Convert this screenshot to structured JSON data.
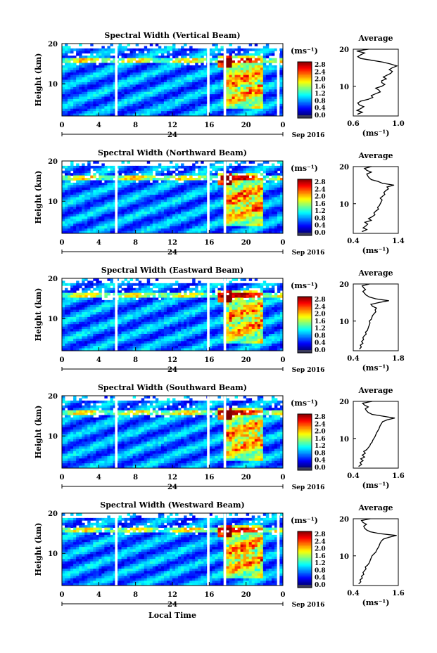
{
  "chart_data": [
    {
      "type": "heatmap",
      "title": "Spectral Width (Vertical Beam)",
      "ylabel": "Height (km)",
      "x_ticks": [
        "0",
        "4",
        "8",
        "12",
        "16",
        "20",
        "0"
      ],
      "y_ticks": [
        "20",
        "10"
      ],
      "ylim": [
        2,
        20
      ],
      "date_day": "24",
      "date_label": "Sep 2016",
      "colorbar": {
        "unit": "(ms⁻¹)",
        "ticks": [
          "2.8",
          "2.4",
          "2.0",
          "1.6",
          "1.2",
          "0.8",
          "0.4",
          "0.0"
        ]
      },
      "gaps_local_time": [
        5.9,
        15.9,
        17.7,
        23.5
      ],
      "profile": {
        "title": "Average",
        "xlabel": "(ms⁻¹)",
        "x_ticks": [
          "0.6",
          "1.0"
        ],
        "xlim": [
          0.6,
          1.2
        ],
        "y_ticks": [
          "20",
          "10"
        ],
        "heights": [
          2.5,
          3,
          3.5,
          4,
          4.5,
          5,
          5.5,
          6,
          6.5,
          7,
          7.5,
          8,
          8.5,
          9,
          9.5,
          10,
          10.5,
          11,
          11.5,
          12,
          12.5,
          13,
          13.5,
          14,
          14.5,
          15,
          15.5,
          16,
          16.5,
          17,
          17.5,
          18,
          18.5,
          19,
          19.5,
          20
        ],
        "values": [
          0.66,
          0.72,
          0.65,
          0.7,
          0.74,
          0.68,
          0.66,
          0.7,
          0.8,
          0.86,
          0.84,
          0.9,
          0.96,
          0.94,
          0.9,
          0.98,
          1.02,
          0.98,
          0.98,
          1.04,
          1.0,
          1.05,
          1.1,
          1.12,
          1.08,
          1.12,
          1.18,
          1.1,
          1.0,
          0.85,
          0.7,
          0.66,
          0.7,
          0.75,
          0.65,
          0.8
        ]
      }
    },
    {
      "type": "heatmap",
      "title": "Spectral Width (Northward Beam)",
      "ylabel": "Height (km)",
      "x_ticks": [
        "0",
        "4",
        "8",
        "12",
        "16",
        "20",
        "0"
      ],
      "y_ticks": [
        "20",
        "10"
      ],
      "ylim": [
        2,
        20
      ],
      "date_day": "24",
      "date_label": "Sep 2016",
      "colorbar": {
        "unit": "(ms⁻¹)",
        "ticks": [
          "2.8",
          "2.4",
          "2.0",
          "1.6",
          "1.2",
          "0.8",
          "0.4",
          "0.0"
        ]
      },
      "gaps_local_time": [
        5.9,
        15.9,
        17.7
      ],
      "profile": {
        "title": "Average",
        "xlabel": "(ms⁻¹)",
        "x_ticks": [
          "0.4",
          "1.4"
        ],
        "xlim": [
          0.4,
          1.4
        ],
        "y_ticks": [
          "20",
          "10"
        ],
        "heights": [
          2.5,
          3,
          3.5,
          4,
          4.5,
          5,
          5.5,
          6,
          6.5,
          7,
          7.5,
          8,
          8.5,
          9,
          9.5,
          10,
          10.5,
          11,
          11.5,
          12,
          12.5,
          13,
          13.5,
          14,
          14.5,
          15,
          15.5,
          16,
          16.5,
          17,
          17.5,
          18,
          18.5,
          19,
          19.5,
          20
        ],
        "values": [
          0.6,
          0.7,
          0.62,
          0.68,
          0.72,
          0.66,
          0.8,
          0.74,
          0.82,
          0.88,
          0.86,
          0.9,
          0.96,
          0.94,
          0.98,
          1.0,
          1.02,
          1.04,
          1.0,
          1.05,
          1.1,
          1.08,
          1.12,
          1.18,
          1.15,
          1.3,
          1.05,
          0.95,
          0.8,
          0.75,
          0.72,
          0.7,
          0.8,
          0.7,
          0.65,
          0.8
        ]
      }
    },
    {
      "type": "heatmap",
      "title": "Spectral Width (Eastward Beam)",
      "ylabel": "Height (km)",
      "x_ticks": [
        "0",
        "4",
        "8",
        "12",
        "16",
        "20",
        "0"
      ],
      "y_ticks": [
        "20",
        "10"
      ],
      "ylim": [
        2,
        20
      ],
      "date_day": "24",
      "date_label": "Sep 2016",
      "colorbar": {
        "unit": "(ms⁻¹)",
        "ticks": [
          "2.8",
          "2.4",
          "2.0",
          "1.6",
          "1.2",
          "0.8",
          "0.4",
          "0.0"
        ]
      },
      "gaps_local_time": [
        5.9,
        15.9,
        17.7
      ],
      "profile": {
        "title": "Average",
        "xlabel": "(ms⁻¹)",
        "x_ticks": [
          "0.4",
          "1.8"
        ],
        "xlim": [
          0.4,
          1.8
        ],
        "y_ticks": [
          "20",
          "10"
        ],
        "heights": [
          2.5,
          3,
          3.5,
          4,
          4.5,
          5,
          5.5,
          6,
          6.5,
          7,
          7.5,
          8,
          8.5,
          9,
          9.5,
          10,
          10.5,
          11,
          11.5,
          12,
          12.5,
          13,
          13.5,
          14,
          14.5,
          15,
          15.5,
          16,
          16.5,
          17,
          17.5,
          18,
          18.5,
          19,
          19.5,
          20
        ],
        "values": [
          0.6,
          0.65,
          0.62,
          0.7,
          0.66,
          0.72,
          0.7,
          0.74,
          0.8,
          0.78,
          0.84,
          0.86,
          0.88,
          0.9,
          0.92,
          0.9,
          0.96,
          0.98,
          1.0,
          1.05,
          1.1,
          1.08,
          1.12,
          1.0,
          0.95,
          1.2,
          1.5,
          1.1,
          0.9,
          0.8,
          0.75,
          0.7,
          0.78,
          0.72,
          0.68,
          0.9
        ]
      }
    },
    {
      "type": "heatmap",
      "title": "Spectral Width (Southward Beam)",
      "ylabel": "Height (km)",
      "x_ticks": [
        "0",
        "4",
        "8",
        "12",
        "16",
        "20",
        "0"
      ],
      "y_ticks": [
        "20",
        "10"
      ],
      "ylim": [
        2,
        20
      ],
      "date_day": "24",
      "date_label": "Sep 2016",
      "colorbar": {
        "unit": "(ms⁻¹)",
        "ticks": [
          "2.8",
          "2.4",
          "2.0",
          "1.6",
          "1.2",
          "0.8",
          "0.4",
          "0.0"
        ]
      },
      "gaps_local_time": [
        5.9,
        15.9,
        17.7
      ],
      "profile": {
        "title": "Average",
        "xlabel": "(ms⁻¹)",
        "x_ticks": [
          "0.4",
          "1.6"
        ],
        "xlim": [
          0.4,
          1.6
        ],
        "y_ticks": [
          "20",
          "10"
        ],
        "heights": [
          2.5,
          3,
          3.5,
          4,
          4.5,
          5,
          5.5,
          6,
          6.5,
          7,
          7.5,
          8,
          8.5,
          9,
          9.5,
          10,
          10.5,
          11,
          11.5,
          12,
          12.5,
          13,
          13.5,
          14,
          14.5,
          15,
          15.5,
          16,
          16.5,
          17,
          17.5,
          18,
          18.5,
          19,
          19.5,
          20
        ],
        "values": [
          0.55,
          0.62,
          0.58,
          0.66,
          0.6,
          0.7,
          0.64,
          0.72,
          0.68,
          0.76,
          0.8,
          0.84,
          0.86,
          0.9,
          0.92,
          0.95,
          0.98,
          1.0,
          1.02,
          1.05,
          1.08,
          1.1,
          1.12,
          1.15,
          1.18,
          1.3,
          1.5,
          1.2,
          0.9,
          0.8,
          0.75,
          0.72,
          0.8,
          0.7,
          0.65,
          0.9
        ]
      }
    },
    {
      "type": "heatmap",
      "title": "Spectral Width (Westward Beam)",
      "ylabel": "Height (km)",
      "x_ticks": [
        "0",
        "4",
        "8",
        "12",
        "16",
        "20",
        "0"
      ],
      "y_ticks": [
        "20",
        "10"
      ],
      "ylim": [
        2,
        20
      ],
      "date_day": "24",
      "date_label": "Sep 2016",
      "xlabel": "Local Time",
      "colorbar": {
        "unit": "(ms⁻¹)",
        "ticks": [
          "2.8",
          "2.4",
          "2.0",
          "1.6",
          "1.2",
          "0.8",
          "0.4",
          "0.0"
        ]
      },
      "gaps_local_time": [
        5.9,
        15.9,
        17.7,
        23.5
      ],
      "profile": {
        "title": "Average",
        "xlabel": "(ms⁻¹)",
        "x_ticks": [
          "0.4",
          "1.6"
        ],
        "xlim": [
          0.4,
          1.6
        ],
        "y_ticks": [
          "20",
          "10"
        ],
        "heights": [
          2.5,
          3,
          3.5,
          4,
          4.5,
          5,
          5.5,
          6,
          6.5,
          7,
          7.5,
          8,
          8.5,
          9,
          9.5,
          10,
          10.5,
          11,
          11.5,
          12,
          12.5,
          13,
          13.5,
          14,
          14.5,
          15,
          15.5,
          16,
          16.5,
          17,
          17.5,
          18,
          18.5,
          19,
          19.5,
          20
        ],
        "values": [
          0.55,
          0.6,
          0.58,
          0.64,
          0.62,
          0.68,
          0.66,
          0.7,
          0.74,
          0.72,
          0.78,
          0.82,
          0.84,
          0.86,
          0.88,
          0.9,
          0.95,
          1.0,
          1.02,
          1.05,
          1.08,
          1.1,
          1.12,
          1.15,
          1.2,
          1.35,
          1.55,
          1.1,
          0.85,
          0.75,
          0.7,
          0.68,
          0.75,
          0.66,
          0.62,
          0.85
        ]
      }
    }
  ]
}
